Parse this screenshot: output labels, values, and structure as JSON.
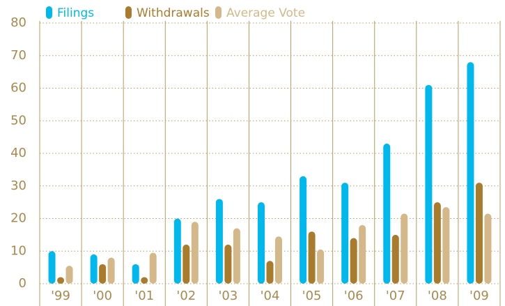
{
  "chart_data": {
    "type": "bar",
    "categories": [
      "'99",
      "'00",
      "'01",
      "'02",
      "'03",
      "'04",
      "'05",
      "'06",
      "'07",
      "'08",
      "'09"
    ],
    "series": [
      {
        "name": "Filings",
        "color": "#00b8ec",
        "values": [
          10,
          9,
          6,
          20,
          26,
          25,
          33,
          31,
          43,
          61,
          68
        ]
      },
      {
        "name": "Withdrawals",
        "color": "#a87c2c",
        "values": [
          2,
          6,
          2,
          12,
          12,
          7,
          16,
          14,
          15,
          25,
          31
        ]
      },
      {
        "name": "Average Vote",
        "color": "#d4b88a",
        "values": [
          5.5,
          8,
          9.5,
          19,
          17,
          14.5,
          10.5,
          18,
          21.5,
          23.5,
          21.5
        ]
      }
    ],
    "ylim": [
      0,
      80
    ],
    "yticks": [
      0,
      10,
      20,
      30,
      40,
      50,
      60,
      70,
      80
    ],
    "grid": true
  }
}
